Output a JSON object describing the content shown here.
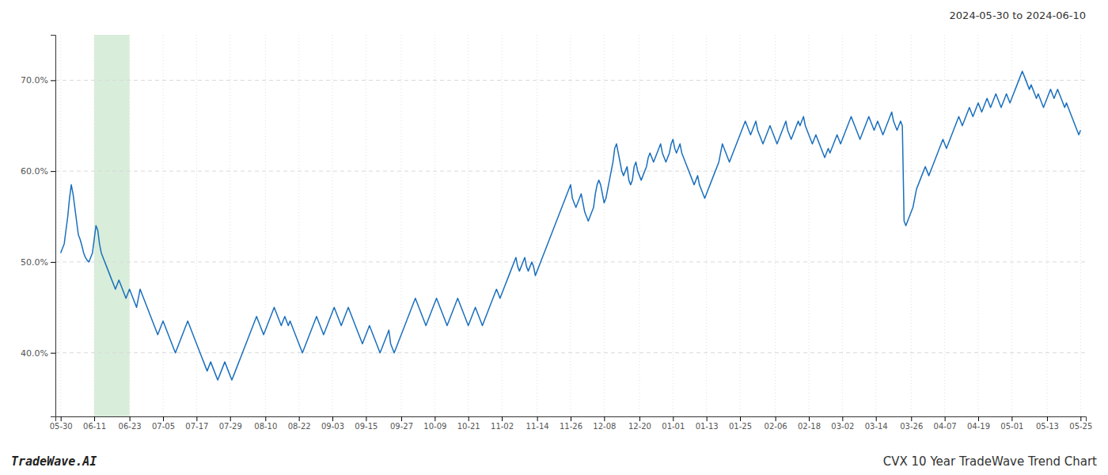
{
  "chart_data": {
    "type": "line",
    "title": "CVX 10 Year TradeWave Trend Chart",
    "subtitle": "2024-05-30 to 2024-06-10",
    "annotations": [
      "TradeWave.AI"
    ],
    "color": "#1a6fbd",
    "grid": true,
    "highlight": {
      "from": "06-11",
      "to": "06-23",
      "color": "#d8edda"
    },
    "ylim": [
      33,
      75
    ],
    "yticks": [
      {
        "value": 40.0,
        "label": "40.0%"
      },
      {
        "value": 50.0,
        "label": "50.0%"
      },
      {
        "value": 60.0,
        "label": "60.0%"
      },
      {
        "value": 70.0,
        "label": "70.0%"
      }
    ],
    "categories": [
      "05-30",
      null,
      null,
      null,
      null,
      null,
      null,
      null,
      null,
      null,
      null,
      null,
      null,
      null,
      null,
      null,
      null,
      null,
      null,
      "06-11",
      null,
      null,
      null,
      null,
      null,
      null,
      null,
      null,
      null,
      null,
      null,
      null,
      null,
      null,
      null,
      null,
      null,
      null,
      null,
      "06-23",
      null,
      null,
      null,
      null,
      null,
      null,
      null,
      null,
      null,
      null,
      null,
      null,
      null,
      null,
      null,
      null,
      null,
      null,
      "07-05",
      null,
      null,
      null,
      null,
      null,
      null,
      null,
      null,
      null,
      null,
      null,
      null,
      null,
      null,
      null,
      null,
      null,
      null,
      "07-17",
      null,
      null,
      null,
      null,
      null,
      null,
      null,
      null,
      null,
      null,
      null,
      null,
      null,
      null,
      null,
      null,
      null,
      null,
      "07-29",
      null,
      null,
      null,
      null,
      null,
      null,
      null,
      null,
      null,
      null,
      null,
      null,
      null,
      null,
      null,
      null,
      null,
      null,
      null,
      "08-10",
      null,
      null,
      null,
      null,
      null,
      null,
      null,
      null,
      null,
      null,
      null,
      null,
      null,
      null,
      null,
      null,
      null,
      null,
      "08-22",
      null,
      null,
      null,
      null,
      null,
      null,
      null,
      null,
      null,
      null,
      null,
      null,
      null,
      null,
      null,
      null,
      null,
      null,
      "09-03",
      null,
      null,
      null,
      null,
      null,
      null,
      null,
      null,
      null,
      null,
      null,
      null,
      null,
      null,
      null,
      null,
      null,
      null,
      "09-15",
      null,
      null,
      null,
      null,
      null,
      null,
      null,
      null,
      null,
      null,
      null,
      null,
      null,
      null,
      null,
      null,
      null,
      null,
      null,
      "09-27",
      null,
      null,
      null,
      null,
      null,
      null,
      null,
      null,
      null,
      null,
      null,
      null,
      null,
      null,
      null,
      null,
      null,
      null,
      "10-09",
      null,
      null,
      null,
      null,
      null,
      null,
      null,
      null,
      null,
      null,
      null,
      null,
      null,
      null,
      null,
      null,
      null,
      null,
      "10-21",
      null,
      null,
      null,
      null,
      null,
      null,
      null,
      null,
      null,
      null,
      null,
      null,
      null,
      null,
      null,
      null,
      null,
      null,
      "11-02",
      null,
      null,
      null,
      null,
      null,
      null,
      null,
      null,
      null,
      null,
      null,
      null,
      null,
      null,
      null,
      null,
      null,
      null,
      null,
      "11-14",
      null,
      null,
      null,
      null,
      null,
      null,
      null,
      null,
      null,
      null,
      null,
      null,
      null,
      null,
      null,
      null,
      null,
      null,
      "11-26",
      null,
      null,
      null,
      null,
      null,
      null,
      null,
      null,
      null,
      null,
      null,
      null,
      null,
      null,
      null,
      null,
      null,
      null,
      "12-08",
      null,
      null,
      null,
      null,
      null,
      null,
      null,
      null,
      null,
      null,
      null,
      null,
      null,
      null,
      null,
      null,
      null,
      null,
      null,
      "12-20",
      null,
      null,
      null,
      null,
      null,
      null,
      null,
      null,
      null,
      null,
      null,
      null,
      null,
      null,
      null,
      null,
      null,
      null,
      "01-01",
      null,
      null,
      null,
      null,
      null,
      null,
      null,
      null,
      null,
      null,
      null,
      null,
      null,
      null,
      null,
      null,
      null,
      null,
      "01-13",
      null,
      null,
      null,
      null,
      null,
      null,
      null,
      null,
      null,
      null,
      null,
      null,
      null,
      null,
      null,
      null,
      null,
      null,
      "01-25",
      null,
      null,
      null,
      null,
      null,
      null,
      null,
      null,
      null,
      null,
      null,
      null,
      null,
      null,
      null,
      null,
      null,
      null,
      null,
      "02-06",
      null,
      null,
      null,
      null,
      null,
      null,
      null,
      null,
      null,
      null,
      null,
      null,
      null,
      null,
      null,
      null,
      null,
      null,
      "02-18",
      null,
      null,
      null,
      null,
      null,
      null,
      null,
      null,
      null,
      null,
      null,
      null,
      null,
      null,
      null,
      null,
      null,
      null,
      "03-02",
      null,
      null,
      null,
      null,
      null,
      null,
      null,
      null,
      null,
      null,
      null,
      null,
      null,
      null,
      null,
      null,
      null,
      null,
      "03-14",
      null,
      null,
      null,
      null,
      null,
      null,
      null,
      null,
      null,
      null,
      null,
      null,
      null,
      null,
      null,
      null,
      null,
      null,
      null,
      "03-26",
      null,
      null,
      null,
      null,
      null,
      null,
      null,
      null,
      null,
      null,
      null,
      null,
      null,
      null,
      null,
      null,
      null,
      null,
      "04-07",
      null,
      null,
      null,
      null,
      null,
      null,
      null,
      null,
      null,
      null,
      null,
      null,
      null,
      null,
      null,
      null,
      null,
      null,
      "04-19",
      null,
      null,
      null,
      null,
      null,
      null,
      null,
      null,
      null,
      null,
      null,
      null,
      null,
      null,
      null,
      null,
      null,
      null,
      "05-01",
      null,
      null,
      null,
      null,
      null,
      null,
      null,
      null,
      null,
      null,
      null,
      null,
      null,
      null,
      null,
      null,
      null,
      null,
      null,
      "05-13",
      null,
      null,
      null,
      null,
      null,
      null,
      null,
      null,
      null,
      null,
      null,
      null,
      null,
      null,
      null,
      null,
      null,
      null,
      "05-25"
    ],
    "values": [
      51.0,
      51.5,
      52.0,
      53.5,
      55.0,
      57.0,
      58.5,
      57.5,
      56.0,
      54.5,
      53.0,
      52.5,
      51.8,
      51.0,
      50.5,
      50.2,
      50.0,
      50.5,
      51.0,
      52.5,
      54.0,
      53.5,
      52.0,
      51.0,
      50.5,
      50.0,
      49.5,
      49.0,
      48.5,
      48.0,
      47.5,
      47.0,
      47.5,
      48.0,
      47.5,
      47.0,
      46.5,
      46.0,
      46.5,
      47.0,
      46.5,
      46.0,
      45.5,
      45.0,
      46.0,
      47.0,
      46.5,
      46.0,
      45.5,
      45.0,
      44.5,
      44.0,
      43.5,
      43.0,
      42.5,
      42.0,
      42.5,
      43.0,
      43.5,
      43.0,
      42.5,
      42.0,
      41.5,
      41.0,
      40.5,
      40.0,
      40.5,
      41.0,
      41.5,
      42.0,
      42.5,
      43.0,
      43.5,
      43.0,
      42.5,
      42.0,
      41.5,
      41.0,
      40.5,
      40.0,
      39.5,
      39.0,
      38.5,
      38.0,
      38.5,
      39.0,
      38.5,
      38.0,
      37.5,
      37.0,
      37.5,
      38.0,
      38.5,
      39.0,
      38.5,
      38.0,
      37.5,
      37.0,
      37.5,
      38.0,
      38.5,
      39.0,
      39.5,
      40.0,
      40.5,
      41.0,
      41.5,
      42.0,
      42.5,
      43.0,
      43.5,
      44.0,
      43.5,
      43.0,
      42.5,
      42.0,
      42.5,
      43.0,
      43.5,
      44.0,
      44.5,
      45.0,
      44.5,
      44.0,
      43.5,
      43.0,
      43.5,
      44.0,
      43.5,
      43.0,
      43.5,
      43.0,
      42.5,
      42.0,
      41.5,
      41.0,
      40.5,
      40.0,
      40.5,
      41.0,
      41.5,
      42.0,
      42.5,
      43.0,
      43.5,
      44.0,
      43.5,
      43.0,
      42.5,
      42.0,
      42.5,
      43.0,
      43.5,
      44.0,
      44.5,
      45.0,
      44.5,
      44.0,
      43.5,
      43.0,
      43.5,
      44.0,
      44.5,
      45.0,
      44.5,
      44.0,
      43.5,
      43.0,
      42.5,
      42.0,
      41.5,
      41.0,
      41.5,
      42.0,
      42.5,
      43.0,
      42.5,
      42.0,
      41.5,
      41.0,
      40.5,
      40.0,
      40.5,
      41.0,
      41.5,
      42.0,
      42.5,
      41.0,
      40.5,
      40.0,
      40.5,
      41.0,
      41.5,
      42.0,
      42.5,
      43.0,
      43.5,
      44.0,
      44.5,
      45.0,
      45.5,
      46.0,
      45.5,
      45.0,
      44.5,
      44.0,
      43.5,
      43.0,
      43.5,
      44.0,
      44.5,
      45.0,
      45.5,
      46.0,
      45.5,
      45.0,
      44.5,
      44.0,
      43.5,
      43.0,
      43.5,
      44.0,
      44.5,
      45.0,
      45.5,
      46.0,
      45.5,
      45.0,
      44.5,
      44.0,
      43.5,
      43.0,
      43.5,
      44.0,
      44.5,
      45.0,
      44.5,
      44.0,
      43.5,
      43.0,
      43.5,
      44.0,
      44.5,
      45.0,
      45.5,
      46.0,
      46.5,
      47.0,
      46.5,
      46.0,
      46.5,
      47.0,
      47.5,
      48.0,
      48.5,
      49.0,
      49.5,
      50.0,
      50.5,
      49.5,
      49.0,
      49.5,
      50.0,
      50.5,
      49.5,
      49.0,
      49.5,
      50.0,
      49.5,
      48.5,
      49.0,
      49.5,
      50.0,
      50.5,
      51.0,
      51.5,
      52.0,
      52.5,
      53.0,
      53.5,
      54.0,
      54.5,
      55.0,
      55.5,
      56.0,
      56.5,
      57.0,
      57.5,
      58.0,
      58.5,
      57.0,
      56.5,
      56.0,
      56.5,
      57.0,
      57.5,
      56.5,
      55.5,
      55.0,
      54.5,
      55.0,
      55.5,
      56.0,
      57.5,
      58.5,
      59.0,
      58.5,
      57.5,
      56.5,
      57.0,
      58.0,
      59.0,
      60.0,
      61.0,
      62.5,
      63.0,
      62.0,
      61.0,
      60.0,
      59.5,
      60.0,
      60.5,
      59.0,
      58.5,
      59.0,
      60.5,
      61.0,
      60.0,
      59.5,
      59.0,
      59.5,
      60.0,
      60.5,
      61.5,
      62.0,
      61.5,
      61.0,
      61.5,
      62.0,
      62.5,
      63.0,
      62.0,
      61.5,
      61.0,
      61.5,
      62.0,
      63.0,
      63.5,
      62.5,
      62.0,
      62.5,
      63.0,
      62.0,
      61.5,
      61.0,
      60.5,
      60.0,
      59.5,
      59.0,
      58.5,
      59.0,
      59.5,
      58.5,
      58.0,
      57.5,
      57.0,
      57.5,
      58.0,
      58.5,
      59.0,
      59.5,
      60.0,
      60.5,
      61.0,
      62.0,
      63.0,
      62.5,
      62.0,
      61.5,
      61.0,
      61.5,
      62.0,
      62.5,
      63.0,
      63.5,
      64.0,
      64.5,
      65.0,
      65.5,
      65.0,
      64.5,
      64.0,
      64.5,
      65.0,
      65.5,
      64.5,
      64.0,
      63.5,
      63.0,
      63.5,
      64.0,
      64.5,
      65.0,
      64.5,
      64.0,
      63.5,
      63.0,
      63.5,
      64.0,
      64.5,
      65.0,
      65.5,
      64.5,
      64.0,
      63.5,
      64.0,
      64.5,
      65.0,
      65.5,
      65.0,
      65.5,
      66.0,
      65.0,
      64.5,
      64.0,
      63.5,
      63.0,
      63.5,
      64.0,
      63.5,
      63.0,
      62.5,
      62.0,
      61.5,
      62.0,
      62.5,
      62.0,
      62.5,
      63.0,
      63.5,
      64.0,
      63.5,
      63.0,
      63.5,
      64.0,
      64.5,
      65.0,
      65.5,
      66.0,
      65.5,
      65.0,
      64.5,
      64.0,
      63.5,
      64.0,
      64.5,
      65.0,
      65.5,
      66.0,
      65.5,
      65.0,
      64.5,
      65.0,
      65.5,
      65.0,
      64.5,
      64.0,
      64.5,
      65.0,
      65.5,
      66.0,
      66.5,
      65.5,
      65.0,
      64.5,
      65.0,
      65.5,
      65.0,
      54.5,
      54.0,
      54.5,
      55.0,
      55.5,
      56.0,
      57.0,
      58.0,
      58.5,
      59.0,
      59.5,
      60.0,
      60.5,
      60.0,
      59.5,
      60.0,
      60.5,
      61.0,
      61.5,
      62.0,
      62.5,
      63.0,
      63.5,
      63.0,
      62.5,
      63.0,
      63.5,
      64.0,
      64.5,
      65.0,
      65.5,
      66.0,
      65.5,
      65.0,
      65.5,
      66.0,
      66.5,
      67.0,
      66.5,
      66.0,
      66.5,
      67.0,
      67.5,
      67.0,
      66.5,
      67.0,
      67.5,
      68.0,
      67.5,
      67.0,
      67.5,
      68.0,
      68.5,
      68.0,
      67.5,
      67.0,
      67.5,
      68.0,
      68.5,
      68.0,
      67.5,
      68.0,
      68.5,
      69.0,
      69.5,
      70.0,
      70.5,
      71.0,
      70.5,
      70.0,
      69.5,
      69.0,
      69.5,
      69.0,
      68.5,
      68.0,
      68.5,
      68.0,
      67.5,
      67.0,
      67.5,
      68.0,
      68.5,
      69.0,
      68.5,
      68.0,
      68.5,
      69.0,
      68.5,
      68.0,
      67.5,
      67.0,
      67.5,
      67.0,
      66.5,
      66.0,
      65.5,
      65.0,
      64.5,
      64.0,
      64.5
    ]
  }
}
